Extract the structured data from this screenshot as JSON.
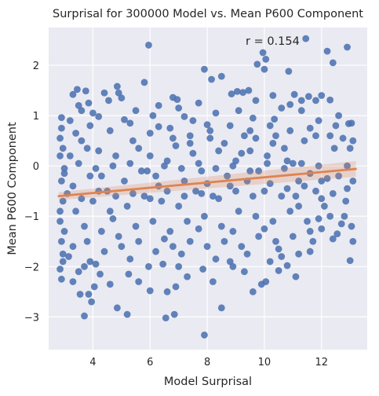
{
  "chart_data": {
    "type": "scatter",
    "title": "Surprisal for 300000 Model vs. Mean P600 Component",
    "xlabel": "Model Surprisal",
    "ylabel": "Mean P600 Component",
    "xlim": [
      2.45,
      13.6
    ],
    "ylim": [
      -3.65,
      2.75
    ],
    "xticks": [
      4,
      6,
      8,
      10,
      12
    ],
    "yticks": [
      -3,
      -2,
      -1,
      0,
      1,
      2
    ],
    "grid": true,
    "annotation": "r = 0.154",
    "colors": {
      "points": "#4c72b0",
      "fit": "#dd8452",
      "background": "#eaeaf2",
      "grid": "#ffffff"
    },
    "regression": {
      "x": [
        2.8,
        13.2
      ],
      "y": [
        -0.6,
        -0.06
      ]
    },
    "points": [
      [
        11.45,
        2.53
      ],
      [
        12.9,
        2.36
      ],
      [
        12.2,
        2.28
      ],
      [
        9.95,
        2.25
      ],
      [
        12.4,
        2.05
      ],
      [
        10.05,
        2.12
      ],
      [
        9.75,
        2.02
      ],
      [
        10.0,
        1.92
      ],
      [
        5.95,
        2.4
      ],
      [
        7.9,
        1.92
      ],
      [
        10.85,
        1.88
      ],
      [
        8.5,
        1.78
      ],
      [
        5.8,
        1.66
      ],
      [
        8.15,
        1.72
      ],
      [
        4.85,
        1.58
      ],
      [
        3.45,
        1.52
      ],
      [
        3.75,
        1.49
      ],
      [
        4.9,
        1.45
      ],
      [
        8.85,
        1.43
      ],
      [
        9.05,
        1.48
      ],
      [
        9.25,
        1.46
      ],
      [
        9.45,
        1.5
      ],
      [
        11.05,
        1.42
      ],
      [
        11.55,
        1.38
      ],
      [
        6.8,
        1.36
      ],
      [
        6.95,
        1.32
      ],
      [
        3.85,
        1.25
      ],
      [
        4.55,
        1.3
      ],
      [
        3.3,
        1.42
      ],
      [
        11.8,
        1.3
      ],
      [
        12.3,
        1.31
      ],
      [
        10.9,
        1.22
      ],
      [
        4.2,
        0.98
      ],
      [
        3.6,
        1.1
      ],
      [
        2.9,
        0.96
      ],
      [
        12.95,
        0.84
      ],
      [
        13.05,
        0.85
      ],
      [
        5.1,
        0.92
      ],
      [
        7.2,
        0.98
      ],
      [
        7.5,
        0.9
      ],
      [
        9.6,
        0.95
      ],
      [
        10.35,
        0.93
      ],
      [
        8.0,
        0.82
      ],
      [
        6.3,
        0.78
      ],
      [
        2.85,
        0.55
      ],
      [
        2.85,
        0.2
      ],
      [
        2.9,
        -0.3
      ],
      [
        2.95,
        -0.7
      ],
      [
        2.85,
        -1.1
      ],
      [
        2.9,
        -1.5
      ],
      [
        2.95,
        -1.9
      ],
      [
        2.85,
        -2.05
      ],
      [
        3.3,
        -2.3
      ],
      [
        3.7,
        -2.0
      ],
      [
        3.85,
        -2.55
      ],
      [
        3.95,
        -2.7
      ],
      [
        3.7,
        -2.98
      ],
      [
        4.25,
        -2.15
      ],
      [
        4.85,
        -2.82
      ],
      [
        5.2,
        -2.95
      ],
      [
        6.55,
        -3.02
      ],
      [
        6.85,
        -2.95
      ],
      [
        6.6,
        -2.5
      ],
      [
        6.0,
        -2.48
      ],
      [
        7.9,
        -3.36
      ],
      [
        8.5,
        -2.82
      ],
      [
        7.3,
        -2.2
      ],
      [
        7.85,
        -2.05
      ],
      [
        8.9,
        -2.0
      ],
      [
        5.95,
        -2.0
      ],
      [
        5.25,
        -2.15
      ],
      [
        6.45,
        -1.95
      ],
      [
        9.9,
        -2.35
      ],
      [
        10.05,
        -2.3
      ],
      [
        9.3,
        -2.1
      ],
      [
        10.5,
        -2.08
      ],
      [
        10.8,
        -1.98
      ],
      [
        11.2,
        -1.75
      ],
      [
        11.6,
        -1.7
      ],
      [
        10.6,
        -1.8
      ],
      [
        13.0,
        -1.88
      ],
      [
        12.4,
        -1.45
      ],
      [
        12.55,
        -1.35
      ],
      [
        13.1,
        -1.5
      ],
      [
        12.0,
        -1.25
      ],
      [
        11.9,
        -1.05
      ],
      [
        12.7,
        -1.15
      ],
      [
        12.85,
        -0.7
      ],
      [
        12.9,
        -0.45
      ],
      [
        12.9,
        0.0
      ],
      [
        13.0,
        0.35
      ],
      [
        12.75,
        0.55
      ],
      [
        11.8,
        0.6
      ],
      [
        12.5,
        0.8
      ],
      [
        12.45,
        0.35
      ],
      [
        12.2,
        -0.25
      ],
      [
        11.6,
        -0.15
      ],
      [
        11.2,
        -0.3
      ],
      [
        11.0,
        0.05
      ],
      [
        10.7,
        0.35
      ],
      [
        10.4,
        0.6
      ],
      [
        10.1,
        0.2
      ],
      [
        9.8,
        -0.1
      ],
      [
        9.5,
        0.3
      ],
      [
        9.3,
        0.6
      ],
      [
        9.0,
        0.1
      ],
      [
        8.7,
        -0.2
      ],
      [
        8.4,
        0.3
      ],
      [
        8.1,
        0.55
      ],
      [
        7.8,
        -0.1
      ],
      [
        7.5,
        0.25
      ],
      [
        7.2,
        -0.3
      ],
      [
        6.9,
        0.4
      ],
      [
        6.6,
        0.1
      ],
      [
        6.3,
        -0.4
      ],
      [
        6.0,
        0.2
      ],
      [
        5.7,
        -0.1
      ],
      [
        5.4,
        0.5
      ],
      [
        5.1,
        -0.3
      ],
      [
        4.8,
        0.2
      ],
      [
        4.5,
        -0.5
      ],
      [
        4.2,
        0.3
      ],
      [
        3.9,
        -0.2
      ],
      [
        3.6,
        0.5
      ],
      [
        3.3,
        -0.4
      ],
      [
        3.2,
        0.2
      ],
      [
        3.4,
        -0.9
      ],
      [
        3.7,
        -1.2
      ],
      [
        4.0,
        -0.7
      ],
      [
        4.3,
        -1.3
      ],
      [
        4.6,
        -0.9
      ],
      [
        4.9,
        -1.4
      ],
      [
        5.2,
        -0.8
      ],
      [
        5.5,
        -1.2
      ],
      [
        5.8,
        -0.6
      ],
      [
        6.1,
        -1.1
      ],
      [
        6.4,
        -0.7
      ],
      [
        6.7,
        -1.3
      ],
      [
        7.0,
        -0.8
      ],
      [
        7.3,
        -1.1
      ],
      [
        7.6,
        -0.5
      ],
      [
        7.9,
        -1.0
      ],
      [
        8.2,
        -0.6
      ],
      [
        8.5,
        -1.2
      ],
      [
        8.8,
        -0.4
      ],
      [
        9.1,
        -0.9
      ],
      [
        9.4,
        -0.3
      ],
      [
        9.7,
        -1.0
      ],
      [
        10.0,
        -0.5
      ],
      [
        10.3,
        -1.1
      ],
      [
        10.6,
        -0.6
      ],
      [
        10.9,
        -0.9
      ],
      [
        11.2,
        -0.8
      ],
      [
        11.5,
        -1.1
      ],
      [
        11.8,
        -0.5
      ],
      [
        12.1,
        -0.8
      ],
      [
        3.3,
        -1.6
      ],
      [
        3.8,
        -1.5
      ],
      [
        4.4,
        -1.7
      ],
      [
        5.0,
        -1.6
      ],
      [
        5.6,
        -1.5
      ],
      [
        6.2,
        -1.7
      ],
      [
        6.8,
        -1.6
      ],
      [
        7.4,
        -1.5
      ],
      [
        8.0,
        -1.6
      ],
      [
        8.6,
        -1.5
      ],
      [
        9.2,
        -1.6
      ],
      [
        9.8,
        -1.4
      ],
      [
        10.4,
        -1.5
      ],
      [
        11.0,
        -1.4
      ],
      [
        11.6,
        -1.3
      ],
      [
        3.2,
        0.9
      ],
      [
        3.9,
        0.8
      ],
      [
        4.6,
        0.7
      ],
      [
        5.3,
        0.85
      ],
      [
        6.0,
        0.65
      ],
      [
        6.7,
        0.75
      ],
      [
        7.4,
        0.6
      ],
      [
        8.1,
        0.7
      ],
      [
        8.8,
        0.8
      ],
      [
        9.5,
        0.7
      ],
      [
        10.2,
        0.8
      ],
      [
        10.9,
        0.7
      ],
      [
        11.6,
        0.75
      ],
      [
        3.0,
        -0.05
      ],
      [
        3.5,
        0.05
      ],
      [
        4.1,
        -0.05
      ],
      [
        4.7,
        0.0
      ],
      [
        5.3,
        0.05
      ],
      [
        5.9,
        -0.1
      ],
      [
        6.5,
        0.0
      ],
      [
        7.1,
        -0.05
      ],
      [
        7.7,
        0.05
      ],
      [
        8.3,
        -0.05
      ],
      [
        8.9,
        0.0
      ],
      [
        9.5,
        -0.1
      ],
      [
        10.1,
        0.05
      ],
      [
        10.7,
        -0.05
      ],
      [
        11.3,
        0.05
      ],
      [
        11.9,
        0.0
      ],
      [
        3.1,
        -0.55
      ],
      [
        3.6,
        -0.65
      ],
      [
        4.2,
        -0.5
      ],
      [
        4.8,
        -0.6
      ],
      [
        5.4,
        -0.55
      ],
      [
        6.0,
        -0.65
      ],
      [
        6.6,
        -0.5
      ],
      [
        7.2,
        -0.6
      ],
      [
        7.8,
        -0.55
      ],
      [
        8.4,
        -0.65
      ],
      [
        9.0,
        -0.5
      ],
      [
        9.6,
        -0.6
      ],
      [
        10.2,
        -0.35
      ],
      [
        10.8,
        -0.45
      ],
      [
        11.4,
        -0.4
      ],
      [
        12.0,
        -0.3
      ],
      [
        3.5,
        1.2
      ],
      [
        4.0,
        1.05
      ],
      [
        5.5,
        1.1
      ],
      [
        6.1,
        1.0
      ],
      [
        7.0,
        1.15
      ],
      [
        8.3,
        1.05
      ],
      [
        9.1,
        1.1
      ],
      [
        10.6,
        1.15
      ],
      [
        11.3,
        1.1
      ],
      [
        4.6,
        -2.35
      ],
      [
        5.6,
        -2.3
      ],
      [
        6.9,
        -2.4
      ],
      [
        8.2,
        -2.3
      ],
      [
        9.6,
        -2.5
      ],
      [
        11.1,
        -2.2
      ],
      [
        3.5,
        -2.1
      ],
      [
        4.1,
        -1.95
      ],
      [
        7.0,
        -2.0
      ],
      [
        8.8,
        -1.9
      ],
      [
        10.2,
        -1.9
      ],
      [
        12.3,
        -1.0
      ],
      [
        12.6,
        -0.2
      ],
      [
        13.1,
        0.5
      ],
      [
        12.3,
        0.6
      ],
      [
        11.9,
        0.9
      ],
      [
        11.3,
        1.3
      ],
      [
        12.0,
        1.4
      ],
      [
        5.0,
        1.35
      ],
      [
        4.4,
        1.45
      ],
      [
        6.3,
        1.2
      ],
      [
        7.7,
        1.25
      ],
      [
        9.7,
        1.3
      ],
      [
        10.3,
        1.4
      ],
      [
        12.6,
        1.0
      ],
      [
        2.9,
        0.75
      ],
      [
        2.95,
        -1.75
      ],
      [
        2.9,
        -2.25
      ],
      [
        2.85,
        -0.9
      ],
      [
        2.95,
        0.35
      ],
      [
        3.0,
        -1.3
      ],
      [
        3.0,
        -0.15
      ],
      [
        3.15,
        -1.8
      ],
      [
        3.4,
        0.65
      ],
      [
        3.55,
        -2.55
      ],
      [
        3.8,
        0.35
      ],
      [
        3.9,
        -1.9
      ],
      [
        4.05,
        -2.4
      ],
      [
        4.3,
        -0.2
      ],
      [
        4.7,
        -1.05
      ],
      [
        5.3,
        -1.85
      ],
      [
        5.6,
        0.35
      ],
      [
        6.2,
        -0.2
      ],
      [
        6.5,
        -1.45
      ],
      [
        6.8,
        0.55
      ],
      [
        7.1,
        -1.75
      ],
      [
        7.4,
        0.45
      ],
      [
        7.7,
        -1.25
      ],
      [
        8.0,
        -0.35
      ],
      [
        8.3,
        -1.85
      ],
      [
        8.6,
        0.45
      ],
      [
        8.9,
        -1.3
      ],
      [
        9.2,
        0.25
      ],
      [
        9.4,
        -1.75
      ],
      [
        9.7,
        0.55
      ],
      [
        10.0,
        -1.25
      ],
      [
        10.3,
        0.45
      ],
      [
        10.5,
        -1.65
      ],
      [
        10.8,
        0.1
      ],
      [
        11.1,
        -0.6
      ],
      [
        11.4,
        0.5
      ],
      [
        11.7,
        -1.5
      ],
      [
        12.0,
        -0.65
      ],
      [
        12.4,
        -0.55
      ],
      [
        12.8,
        -1.0
      ],
      [
        13.05,
        -1.2
      ],
      [
        13.1,
        -0.3
      ]
    ]
  }
}
